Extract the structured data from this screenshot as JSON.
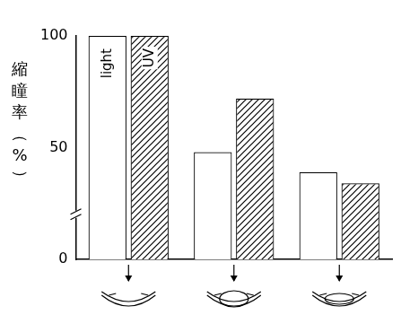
{
  "chart_data": {
    "type": "bar",
    "y_label": "縮瞳率（%）",
    "categories": [
      null,
      null,
      null
    ],
    "series": [
      {
        "name": "light",
        "color": "#ffffff",
        "values": [
          100,
          48,
          39
        ]
      },
      {
        "name": "UV",
        "color": "#000000",
        "values": [
          100,
          72,
          34
        ]
      }
    ],
    "ylim": [
      0,
      100
    ],
    "yticks": [
      0,
      50,
      100
    ],
    "grid": false
  }
}
